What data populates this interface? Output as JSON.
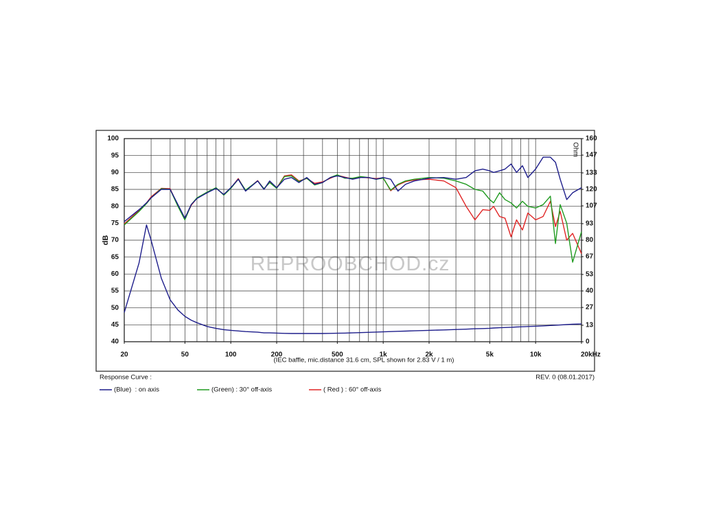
{
  "chart_data": {
    "type": "line",
    "y_label": "dB",
    "y2_label": "Ohm",
    "caption": "(IEC baffle, mic.distance 31.6 cm, SPL shown for 2.83 V / 1 m)",
    "legend_title": "Response Curve :",
    "revision": "REV. 0 (08.01.2017)",
    "watermark": "REPROOBCHOD.cz",
    "log_x": true,
    "grid": true,
    "xlim": [
      20,
      20000
    ],
    "ylim": [
      40,
      100
    ],
    "y2lim": [
      0,
      160
    ],
    "xticks": [
      20,
      50,
      100,
      200,
      500,
      {
        "value": 1000,
        "label": "1k"
      },
      {
        "value": 2000,
        "label": "2k"
      },
      {
        "value": 5000,
        "label": "5k"
      },
      {
        "value": 10000,
        "label": "10k"
      },
      {
        "value": 20000,
        "label": "20kHz"
      }
    ],
    "xgrid": [
      20,
      30,
      40,
      50,
      60,
      70,
      80,
      90,
      100,
      200,
      300,
      400,
      500,
      600,
      700,
      800,
      900,
      1000,
      2000,
      3000,
      4000,
      5000,
      6000,
      7000,
      8000,
      9000,
      10000,
      20000
    ],
    "yticks": [
      40,
      45,
      50,
      55,
      60,
      65,
      70,
      75,
      80,
      85,
      90,
      95,
      100
    ],
    "y2ticks": [
      0,
      13,
      27,
      40,
      53,
      67,
      80,
      93,
      107,
      120,
      133,
      147,
      160
    ],
    "x": [
      20,
      25,
      28,
      30,
      35,
      40,
      45,
      50,
      55,
      60,
      70,
      80,
      90,
      100,
      112,
      125,
      150,
      165,
      180,
      200,
      225,
      250,
      280,
      315,
      355,
      400,
      450,
      500,
      560,
      630,
      710,
      800,
      900,
      1000,
      1120,
      1250,
      1400,
      1600,
      2000,
      2500,
      3000,
      3500,
      4000,
      4500,
      5000,
      5300,
      5800,
      6300,
      6900,
      7500,
      8200,
      8900,
      10000,
      11200,
      12500,
      13500,
      14500,
      16000,
      17500,
      20000
    ],
    "series": [
      {
        "name": "(Blue)  : on axis",
        "color": "#1c1c8a",
        "values": [
          75.5,
          79,
          81,
          82.5,
          85,
          85,
          80.5,
          76.5,
          80.5,
          82.3,
          84,
          85.3,
          83.5,
          85.5,
          88,
          84.5,
          87.5,
          85,
          87.5,
          85.5,
          88,
          88.5,
          87,
          88.5,
          86.5,
          87,
          88.5,
          89,
          88.5,
          88,
          88.5,
          88.5,
          88,
          88.5,
          88,
          84.5,
          86.5,
          87.5,
          88.3,
          88.5,
          88,
          88.5,
          90.5,
          91,
          90.5,
          90,
          90.5,
          91,
          92.5,
          90,
          92,
          88.5,
          91,
          94.5,
          94.5,
          93,
          88,
          82,
          84,
          85.5
        ]
      },
      {
        "name": "(Green) : 30° off-axis",
        "color": "#1f9a1f",
        "values": [
          74.5,
          78.5,
          80.8,
          82.5,
          85.2,
          85,
          80,
          76,
          80.5,
          82.5,
          84.2,
          85.5,
          83.3,
          85.3,
          88,
          84.8,
          87.5,
          85.2,
          87,
          85.3,
          88.8,
          89,
          87.3,
          88.3,
          86.3,
          87,
          88.5,
          89.3,
          88.3,
          88.3,
          88.8,
          88.5,
          88,
          88.3,
          84.8,
          86.5,
          87.5,
          88,
          88.5,
          88.3,
          87.5,
          86.5,
          85,
          84.5,
          82,
          81,
          84,
          82,
          81,
          79.5,
          81.5,
          80,
          79.5,
          80.5,
          83,
          69,
          80.5,
          75,
          63.5,
          72.5
        ]
      },
      {
        "name": "( Red ) : 60° off-axis",
        "color": "#e02424",
        "values": [
          74.8,
          78.8,
          81,
          82.8,
          85.3,
          85.2,
          80.2,
          76.2,
          80.3,
          82.4,
          84.1,
          85.4,
          83.4,
          85.4,
          88.2,
          84.6,
          87.6,
          85.1,
          87.3,
          85.4,
          89,
          89.3,
          87.5,
          88.2,
          86.8,
          87.2,
          88.3,
          89.2,
          88.6,
          88.1,
          88.6,
          88.4,
          88.2,
          88.4,
          84.6,
          86.3,
          87.3,
          87.8,
          88,
          87.5,
          85.5,
          80,
          76,
          79,
          78.8,
          80,
          77,
          76.5,
          71,
          76,
          73,
          78,
          76,
          77,
          81.5,
          74,
          78.5,
          70,
          72,
          66
        ]
      },
      {
        "color": "#1c1c8a",
        "axis": "y2",
        "values": [
          23,
          62,
          92,
          80,
          50,
          33,
          25,
          20,
          17,
          15,
          12,
          10.5,
          9.5,
          9,
          8.5,
          8,
          7.5,
          7,
          7,
          6.8,
          6.6,
          6.5,
          6.5,
          6.5,
          6.5,
          6.5,
          6.6,
          6.7,
          6.8,
          7,
          7.2,
          7.4,
          7.6,
          7.8,
          8,
          8.2,
          8.4,
          8.6,
          9,
          9.3,
          9.6,
          9.9,
          10.2,
          10.4,
          10.6,
          10.8,
          11,
          11.2,
          11.4,
          11.6,
          11.8,
          12,
          12.2,
          12.5,
          12.8,
          13,
          13.2,
          13.5,
          13.8,
          14
        ]
      }
    ]
  }
}
